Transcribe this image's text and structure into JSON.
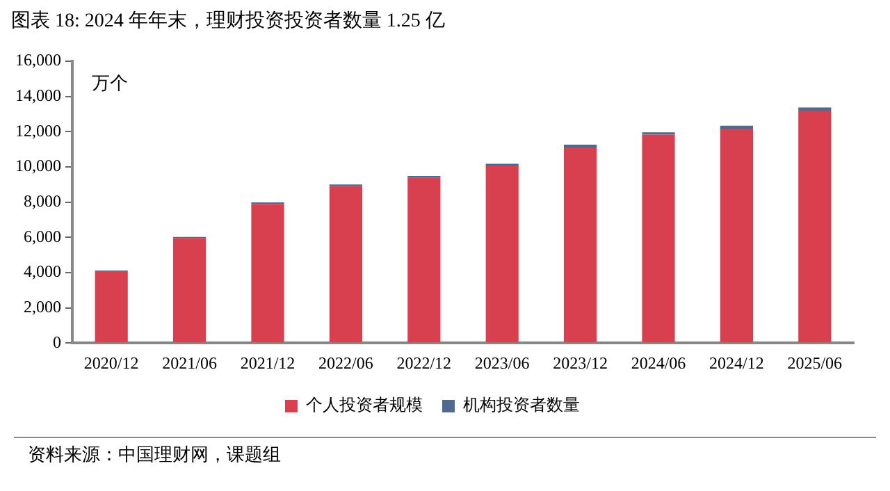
{
  "chart_data": {
    "type": "bar",
    "title": "图表 18: 2024 年年末，理财投资投资者数量 1.25 亿",
    "ylabel": "万个",
    "annotations": [
      "资料来源：中国理财网，课题组"
    ],
    "categories": [
      "2020/12",
      "2021/06",
      "2021/12",
      "2022/06",
      "2022/12",
      "2023/06",
      "2023/12",
      "2024/06",
      "2024/12",
      "2025/06"
    ],
    "series": [
      {
        "name": "个人投资者规模",
        "color": "#d9404f",
        "values": [
          4080,
          5960,
          7900,
          8900,
          9380,
          10080,
          11100,
          11830,
          12170,
          13200
        ]
      },
      {
        "name": "机构投资者数量",
        "color": "#4f6a8f",
        "values": [
          40,
          60,
          80,
          100,
          100,
          100,
          160,
          130,
          170,
          170
        ]
      }
    ],
    "stacked": true,
    "ylim": [
      0,
      16000
    ],
    "yticks": [
      {
        "value": 0,
        "label": "0"
      },
      {
        "value": 2000,
        "label": "2,000"
      },
      {
        "value": 4000,
        "label": "4,000"
      },
      {
        "value": 6000,
        "label": "6,000"
      },
      {
        "value": 8000,
        "label": "8,000"
      },
      {
        "value": 10000,
        "label": "10,000"
      },
      {
        "value": 12000,
        "label": "12,000"
      },
      {
        "value": 14000,
        "label": "14,000"
      },
      {
        "value": 16000,
        "label": "16,000"
      }
    ],
    "legend": "bottom"
  }
}
